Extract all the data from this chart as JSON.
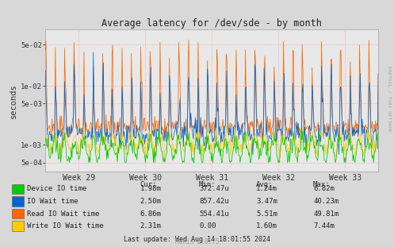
{
  "title": "Average latency for /dev/sde - by month",
  "ylabel": "seconds",
  "background_color": "#d8d8d8",
  "plot_bg_color": "#e8e8e8",
  "grid_color": "#ff9999",
  "yticks": [
    0.0005,
    0.001,
    0.005,
    0.01,
    0.05
  ],
  "ytick_labels": [
    "5e-04",
    "1e-03",
    "5e-03",
    "1e-02",
    "5e-02"
  ],
  "ymin": 0.00035,
  "ymax": 0.09,
  "week_labels": [
    "Week 29",
    "Week 30",
    "Week 31",
    "Week 32",
    "Week 33"
  ],
  "legend": [
    {
      "label": "Device IO time",
      "color": "#00cc00"
    },
    {
      "label": "IO Wait time",
      "color": "#0066cc"
    },
    {
      "label": "Read IO Wait time",
      "color": "#ff6600"
    },
    {
      "label": "Write IO Wait time",
      "color": "#ffcc00"
    }
  ],
  "table_headers": [
    "Cur:",
    "Min:",
    "Avg:",
    "Max:"
  ],
  "table_rows": [
    [
      "1.98m",
      "372.47u",
      "1.24m",
      "6.82m"
    ],
    [
      "2.50m",
      "857.42u",
      "3.47m",
      "40.23m"
    ],
    [
      "6.86m",
      "554.41u",
      "5.51m",
      "49.81m"
    ],
    [
      "2.31m",
      "0.00",
      "1.60m",
      "7.44m"
    ]
  ],
  "footer": "Last update: Wed Aug 14 18:01:55 2024",
  "munin_version": "Munin 2.0.75",
  "rrdtool_label": "RRDTOOL / TOBI OETIKER",
  "n_points": 500
}
